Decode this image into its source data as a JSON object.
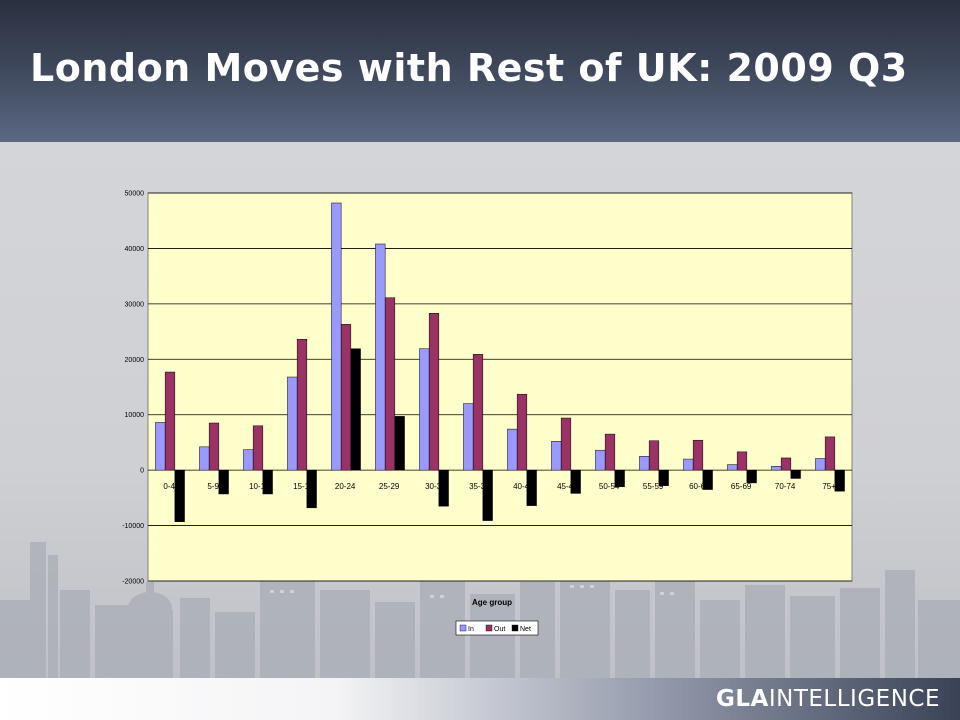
{
  "title": "London Moves with Rest of UK: 2009 Q3",
  "footer": {
    "brand_bold": "GLA",
    "brand_rest": "INTELLIGENCE"
  },
  "colors": {
    "in": "#9999ff",
    "out": "#993366",
    "net": "#000000",
    "plot_bg": "#ffffcc",
    "header": "#3d4659"
  },
  "chart_data": {
    "type": "bar",
    "xlabel": "Age group",
    "ylabel": "",
    "ylim": [
      -20000,
      50000
    ],
    "yticks": [
      50000,
      40000,
      30000,
      20000,
      10000,
      0,
      -10000,
      -20000
    ],
    "grid": true,
    "legend": "bottom",
    "categories": [
      "0-4",
      "5-9",
      "10-14",
      "15-19",
      "20-24",
      "25-29",
      "30-34",
      "35-39",
      "40-44",
      "45-49",
      "50-54",
      "55-59",
      "60-64",
      "65-69",
      "70-74",
      "75+"
    ],
    "category_labels_visible": [
      "0-4",
      "5-9",
      "10-1",
      "15-1",
      "20-24",
      "25-29",
      "30-3",
      "35-3",
      "40-4",
      "45-4",
      "50-54",
      "55-59",
      "60-6",
      "65-69",
      "70-74",
      "75+"
    ],
    "series": [
      {
        "name": "In",
        "values": [
          8600,
          4200,
          3700,
          16800,
          48200,
          40800,
          21900,
          12000,
          7400,
          5200,
          3600,
          2500,
          2000,
          1000,
          700,
          2100
        ]
      },
      {
        "name": "Out",
        "values": [
          17700,
          8500,
          8000,
          23600,
          26300,
          31100,
          28300,
          20900,
          13700,
          9400,
          6500,
          5300,
          5400,
          3300,
          2200,
          6000
        ]
      },
      {
        "name": "Net",
        "values": [
          -9300,
          -4300,
          -4300,
          -6800,
          21900,
          9700,
          -6500,
          -9100,
          -6400,
          -4200,
          -3000,
          -2800,
          -3500,
          -2300,
          -1500,
          -3800
        ]
      }
    ]
  }
}
